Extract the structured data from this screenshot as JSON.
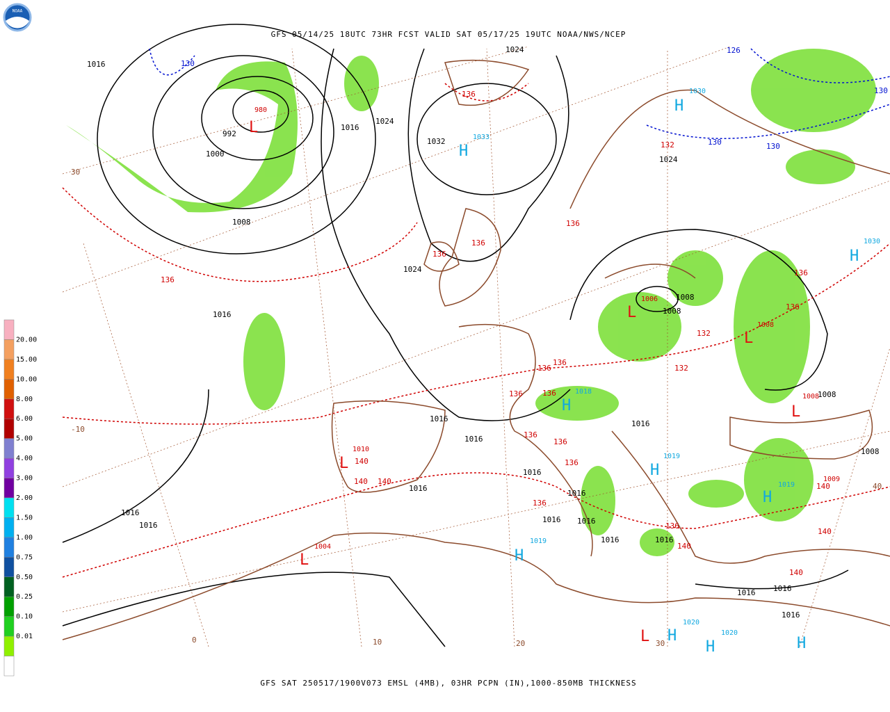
{
  "header": {
    "title": "GFS 05/14/25 18UTC 73HR FCST VALID SAT 05/17/25 19UTC NOAA/NWS/NCEP",
    "logo": "NOAA"
  },
  "footer": {
    "caption": "GFS SAT 250517/1900V073 EMSL (4MB), 03HR PCPN (IN),1000-850MB THICKNESS"
  },
  "legend": {
    "labels": [
      "20.00",
      "15.00",
      "10.00",
      "8.00",
      "6.00",
      "5.00",
      "4.00",
      "3.00",
      "2.00",
      "1.50",
      "1.00",
      "0.75",
      "0.50",
      "0.25",
      "0.10",
      "0.01"
    ],
    "colors": [
      "#f8b0c0",
      "#f4a060",
      "#f08020",
      "#e06000",
      "#d01010",
      "#b00000",
      "#8080d0",
      "#9040e0",
      "#7000a0",
      "#00e0f0",
      "#00b0f0",
      "#2080e0",
      "#1050a0",
      "#006020",
      "#00a000",
      "#20d020",
      "#90f000",
      "#ffffff"
    ]
  },
  "map": {
    "labels": [
      {
        "text": "1016",
        "kind": "isobar"
      },
      {
        "text": "1024",
        "kind": "isobar"
      },
      {
        "text": "992",
        "kind": "isobar"
      },
      {
        "text": "1000",
        "kind": "isobar"
      },
      {
        "text": "1008",
        "kind": "isobar"
      },
      {
        "text": "1016",
        "kind": "isobar"
      },
      {
        "text": "1024",
        "kind": "isobar"
      },
      {
        "text": "1032",
        "kind": "isobar"
      },
      {
        "text": "1024",
        "kind": "isobar"
      },
      {
        "text": "1016",
        "kind": "isobar"
      },
      {
        "text": "1016",
        "kind": "isobar"
      },
      {
        "text": "1016",
        "kind": "isobar"
      },
      {
        "text": "1016",
        "kind": "isobar"
      },
      {
        "text": "1008",
        "kind": "isobar"
      },
      {
        "text": "1008",
        "kind": "isobar"
      },
      {
        "text": "1024",
        "kind": "isobar"
      },
      {
        "text": "1008",
        "kind": "isobar"
      },
      {
        "text": "1016",
        "kind": "isobar"
      },
      {
        "text": "1016",
        "kind": "isobar"
      },
      {
        "text": "1016",
        "kind": "isobar"
      },
      {
        "text": "1016",
        "kind": "isobar"
      },
      {
        "text": "1016",
        "kind": "isobar"
      },
      {
        "text": "1016",
        "kind": "isobar"
      },
      {
        "text": "1016",
        "kind": "isobar"
      },
      {
        "text": "1016",
        "kind": "isobar"
      },
      {
        "text": "1016",
        "kind": "isobar"
      },
      {
        "text": "1016",
        "kind": "isobar"
      },
      {
        "text": "1016",
        "kind": "isobar"
      },
      {
        "text": "1016",
        "kind": "isobar"
      },
      {
        "text": "1008",
        "kind": "isobar"
      },
      {
        "text": "130",
        "kind": "cold"
      },
      {
        "text": "126",
        "kind": "cold"
      },
      {
        "text": "130",
        "kind": "cold"
      },
      {
        "text": "130",
        "kind": "cold"
      },
      {
        "text": "130",
        "kind": "cold"
      },
      {
        "text": "136",
        "kind": "warm"
      },
      {
        "text": "132",
        "kind": "warm"
      },
      {
        "text": "136",
        "kind": "warm"
      },
      {
        "text": "136",
        "kind": "warm"
      },
      {
        "text": "136",
        "kind": "warm"
      },
      {
        "text": "136",
        "kind": "warm"
      },
      {
        "text": "132",
        "kind": "warm"
      },
      {
        "text": "136",
        "kind": "warm"
      },
      {
        "text": "136",
        "kind": "warm"
      },
      {
        "text": "136",
        "kind": "warm"
      },
      {
        "text": "136",
        "kind": "warm"
      },
      {
        "text": "132",
        "kind": "warm"
      },
      {
        "text": "136",
        "kind": "warm"
      },
      {
        "text": "136",
        "kind": "warm"
      },
      {
        "text": "136",
        "kind": "warm"
      },
      {
        "text": "136",
        "kind": "warm"
      },
      {
        "text": "136",
        "kind": "warm"
      },
      {
        "text": "140",
        "kind": "warm"
      },
      {
        "text": "140",
        "kind": "warm"
      },
      {
        "text": "140",
        "kind": "warm"
      },
      {
        "text": "136",
        "kind": "warm"
      },
      {
        "text": "136",
        "kind": "warm"
      },
      {
        "text": "140",
        "kind": "warm"
      },
      {
        "text": "140",
        "kind": "warm"
      },
      {
        "text": "140",
        "kind": "warm"
      },
      {
        "text": "140",
        "kind": "warm"
      },
      {
        "text": "40",
        "kind": "grid"
      },
      {
        "text": "30",
        "kind": "grid"
      },
      {
        "text": "-10",
        "kind": "grid"
      },
      {
        "text": "0",
        "kind": "grid"
      },
      {
        "text": "10",
        "kind": "grid"
      },
      {
        "text": "20",
        "kind": "grid"
      },
      {
        "text": "30",
        "kind": "grid"
      },
      {
        "text": "H",
        "kind": "high"
      },
      {
        "text": "1033",
        "kind": "highval"
      },
      {
        "text": "H",
        "kind": "high"
      },
      {
        "text": "1030",
        "kind": "highval"
      },
      {
        "text": "H",
        "kind": "high"
      },
      {
        "text": "1030",
        "kind": "highval"
      },
      {
        "text": "H",
        "kind": "high"
      },
      {
        "text": "1018",
        "kind": "highval"
      },
      {
        "text": "H",
        "kind": "high"
      },
      {
        "text": "1019",
        "kind": "highval"
      },
      {
        "text": "H",
        "kind": "high"
      },
      {
        "text": "1019",
        "kind": "highval"
      },
      {
        "text": "H",
        "kind": "high"
      },
      {
        "text": "1019",
        "kind": "highval"
      },
      {
        "text": "H",
        "kind": "high"
      },
      {
        "text": "1020",
        "kind": "highval"
      },
      {
        "text": "H",
        "kind": "high"
      },
      {
        "text": "1020",
        "kind": "highval"
      },
      {
        "text": "H",
        "kind": "high"
      },
      {
        "text": "L",
        "kind": "low"
      },
      {
        "text": "980",
        "kind": "lowval"
      },
      {
        "text": "L",
        "kind": "low"
      },
      {
        "text": "1006",
        "kind": "lowval"
      },
      {
        "text": "L",
        "kind": "low"
      },
      {
        "text": "1008",
        "kind": "lowval"
      },
      {
        "text": "L",
        "kind": "low"
      },
      {
        "text": "1010",
        "kind": "lowval"
      },
      {
        "text": "L",
        "kind": "low"
      },
      {
        "text": "1004",
        "kind": "lowval"
      },
      {
        "text": "L",
        "kind": "low"
      },
      {
        "text": "1008",
        "kind": "lowval"
      },
      {
        "text": "L",
        "kind": "low"
      },
      {
        "text": "1009",
        "kind": "lowval"
      }
    ]
  }
}
